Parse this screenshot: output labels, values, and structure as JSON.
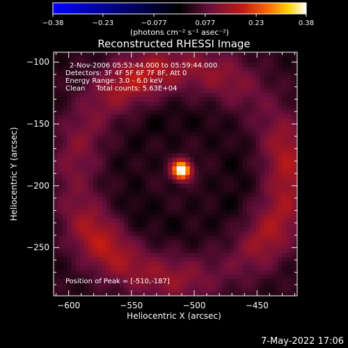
{
  "chart_data": {
    "type": "heatmap",
    "title": "Reconstructed RHESSI Image",
    "xlabel": "Heliocentric X (arcsec)",
    "ylabel": "Heliocentric Y (arcsec)",
    "xlim": [
      -612,
      -418
    ],
    "ylim": [
      -289,
      -92
    ],
    "xticks": [
      -600,
      -550,
      -500,
      -450
    ],
    "xtick_labels": [
      "−600",
      "−550",
      "−500",
      "−450"
    ],
    "yticks": [
      -100,
      -150,
      -200,
      -250
    ],
    "ytick_labels": [
      "−100",
      "−150",
      "−200",
      "−250"
    ],
    "colorbar": {
      "range": [
        -0.38,
        0.38
      ],
      "ticks": [
        -0.38,
        -0.23,
        -0.077,
        0.077,
        0.23,
        0.38
      ],
      "tick_labels": [
        "−0.38",
        "−0.23",
        "−0.077",
        "0.077",
        "0.23",
        "0.38"
      ],
      "unit_label": "(photons cm⁻² s⁻¹ asec⁻²)",
      "colormap": [
        "#0000ff",
        "#000000",
        "#6a0f3c",
        "#c21a14",
        "#ff6a00",
        "#ffd400",
        "#ffffff"
      ]
    },
    "annotations": [
      "2-Nov-2006 05:53:44.000 to 05:59:44.000",
      "Detectors: 3F 4F 5F 6F 7F 8F, Att 0",
      "Energy Range: 3.0 - 6.0 keV",
      "Clean     Total counts: 5.63E+04"
    ],
    "peak_label": "Position of Peak = [-510,-187]",
    "peak": {
      "x": -510,
      "y": -187,
      "value": 0.38
    },
    "features": [
      {
        "kind": "source",
        "x": -510,
        "y": -187,
        "width": 12,
        "value": 0.38
      },
      {
        "kind": "ring",
        "x": -510,
        "y": -190,
        "radius": 85,
        "width": 14,
        "value": 0.13
      },
      {
        "kind": "ring",
        "x": -510,
        "y": -190,
        "radius": 45,
        "width": 10,
        "value": -0.02
      }
    ]
  },
  "footer_date": "7-May-2022 17:06"
}
